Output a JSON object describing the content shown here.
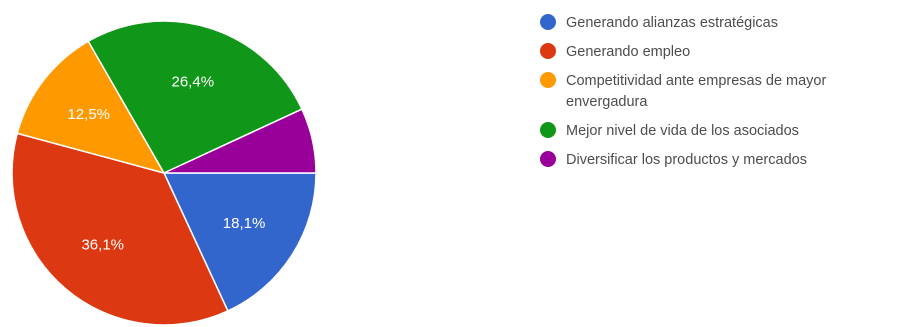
{
  "chart_data": {
    "type": "pie",
    "title": "",
    "legend_position": "right",
    "slices": [
      {
        "label": "Generando alianzas estratégicas",
        "value": 18.1,
        "display": "18,1%",
        "color": "#3366cc"
      },
      {
        "label": "Generando empleo",
        "value": 36.1,
        "display": "36,1%",
        "color": "#dc3912"
      },
      {
        "label": "Competitividad ante empresas de mayor envergadura",
        "value": 12.5,
        "display": "12,5%",
        "color": "#ff9900"
      },
      {
        "label": "Mejor nivel de vida de los asociados",
        "value": 26.4,
        "display": "26,4%",
        "color": "#109618"
      },
      {
        "label": "Diversificar los productos y mercados",
        "value": 6.9,
        "display": "",
        "color": "#990099"
      }
    ]
  }
}
